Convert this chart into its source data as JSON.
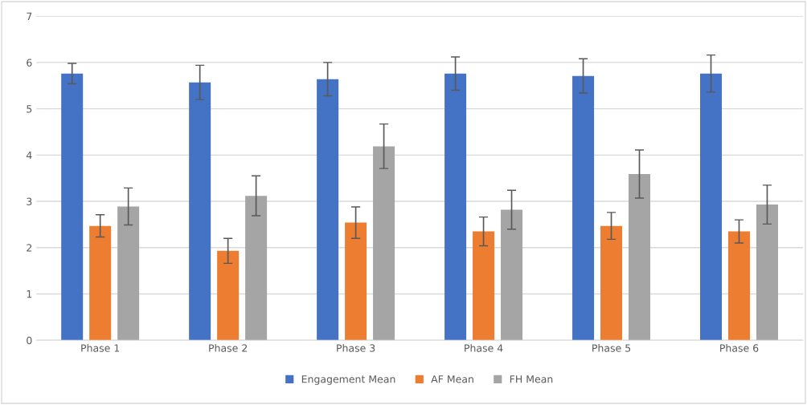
{
  "chart_data": {
    "type": "bar",
    "categories": [
      "Phase 1",
      "Phase 2",
      "Phase 3",
      "Phase 4",
      "Phase 5",
      "Phase 6"
    ],
    "series": [
      {
        "name": "Engagement Mean",
        "color": "#4472c4",
        "values": [
          5.76,
          5.57,
          5.64,
          5.76,
          5.71,
          5.76
        ],
        "errors": [
          0.22,
          0.37,
          0.36,
          0.36,
          0.37,
          0.4
        ]
      },
      {
        "name": "AF Mean",
        "color": "#ed7d31",
        "values": [
          2.47,
          1.93,
          2.54,
          2.35,
          2.47,
          2.35
        ],
        "errors": [
          0.24,
          0.27,
          0.34,
          0.31,
          0.29,
          0.25
        ]
      },
      {
        "name": "FH Mean",
        "color": "#a5a5a5",
        "values": [
          2.89,
          3.12,
          4.19,
          2.82,
          3.59,
          2.93
        ],
        "errors": [
          0.4,
          0.43,
          0.48,
          0.42,
          0.52,
          0.42
        ]
      }
    ],
    "ylim": [
      0,
      7
    ],
    "yticks": [
      0,
      1,
      2,
      3,
      4,
      5,
      6,
      7
    ],
    "grid": "y",
    "legend": "bottom"
  }
}
